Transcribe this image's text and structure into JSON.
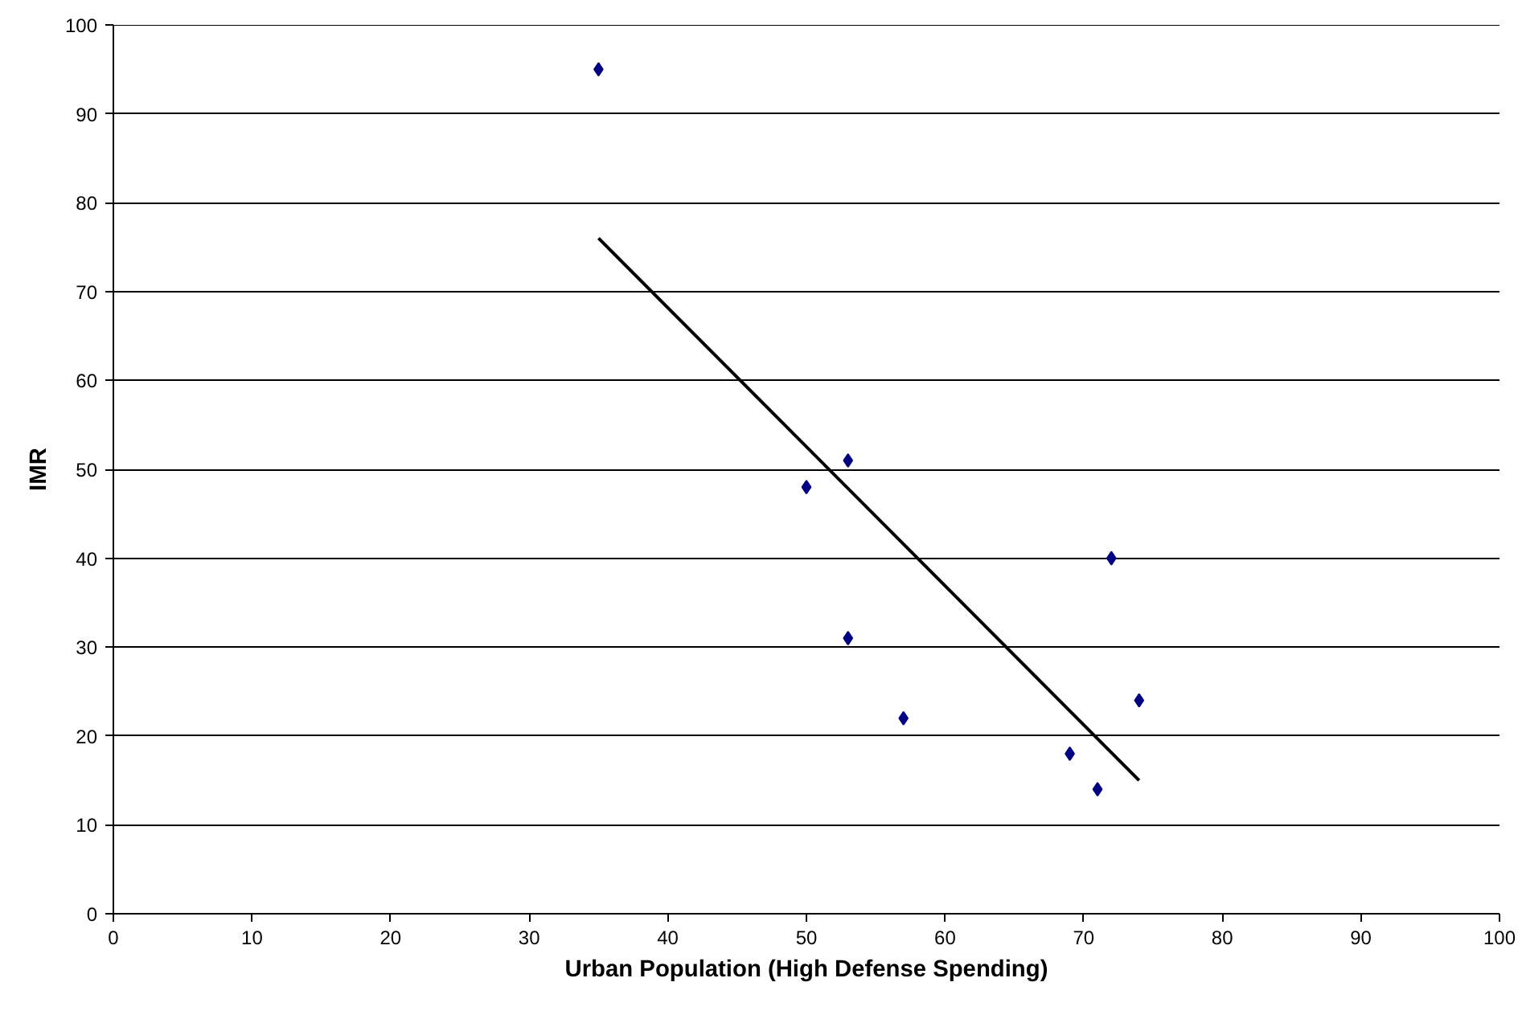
{
  "chart_data": {
    "type": "scatter",
    "xlabel": "Urban Population (High Defense Spending)",
    "ylabel": "IMR",
    "xlim": [
      0,
      100
    ],
    "ylim": [
      0,
      100
    ],
    "xticks": [
      0,
      10,
      20,
      30,
      40,
      50,
      60,
      70,
      80,
      90,
      100
    ],
    "yticks": [
      0,
      10,
      20,
      30,
      40,
      50,
      60,
      70,
      80,
      90,
      100
    ],
    "grid": "y",
    "series": [
      {
        "marker": "diamond",
        "color": "#000080",
        "x": [
          35,
          50,
          53,
          53,
          57,
          69,
          71,
          72,
          74
        ],
        "values": [
          95,
          48,
          51,
          31,
          22,
          18,
          14,
          40,
          24
        ]
      },
      {
        "type": "line",
        "marker": "none",
        "color": "#000000",
        "x": [
          35,
          74
        ],
        "values": [
          76,
          15
        ]
      }
    ]
  }
}
